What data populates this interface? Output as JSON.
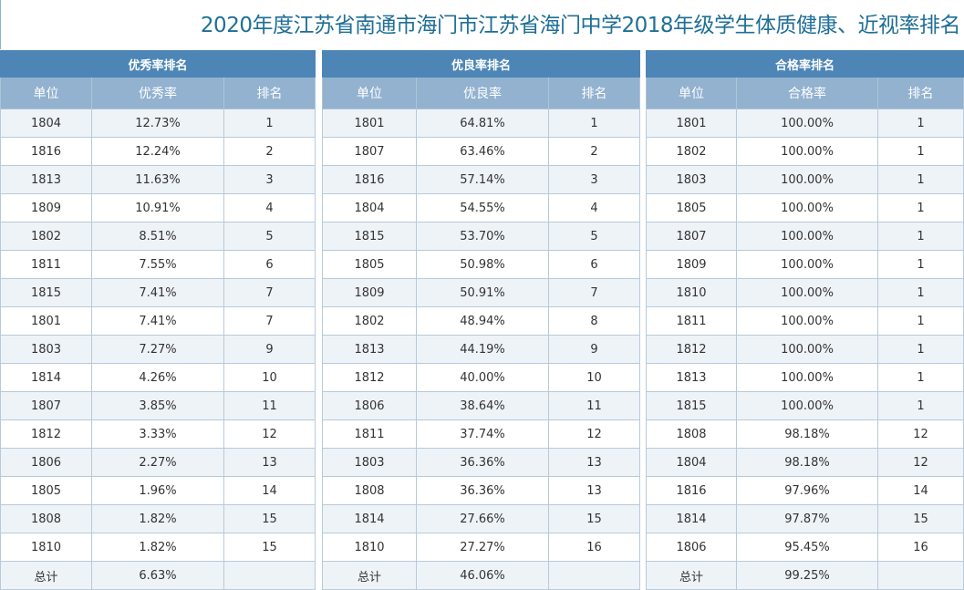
{
  "title": "2020年度江苏省南通市海门市江苏省海门中学2018年级学生体质健康、近视率排名",
  "colors": {
    "title": "#1f6f96",
    "panel_header": "#4d86b6",
    "column_header": "#92b2cf",
    "row_alt": "#eef3f8"
  },
  "panels": [
    {
      "title": "优秀率排名",
      "columns": [
        "单位",
        "优秀率",
        "排名"
      ],
      "rows": [
        [
          "1804",
          "12.73%",
          "1"
        ],
        [
          "1816",
          "12.24%",
          "2"
        ],
        [
          "1813",
          "11.63%",
          "3"
        ],
        [
          "1809",
          "10.91%",
          "4"
        ],
        [
          "1802",
          "8.51%",
          "5"
        ],
        [
          "1811",
          "7.55%",
          "6"
        ],
        [
          "1815",
          "7.41%",
          "7"
        ],
        [
          "1801",
          "7.41%",
          "7"
        ],
        [
          "1803",
          "7.27%",
          "9"
        ],
        [
          "1814",
          "4.26%",
          "10"
        ],
        [
          "1807",
          "3.85%",
          "11"
        ],
        [
          "1812",
          "3.33%",
          "12"
        ],
        [
          "1806",
          "2.27%",
          "13"
        ],
        [
          "1805",
          "1.96%",
          "14"
        ],
        [
          "1808",
          "1.82%",
          "15"
        ],
        [
          "1810",
          "1.82%",
          "15"
        ]
      ],
      "total": [
        "总计",
        "6.63%",
        ""
      ]
    },
    {
      "title": "优良率排名",
      "columns": [
        "单位",
        "优良率",
        "排名"
      ],
      "rows": [
        [
          "1801",
          "64.81%",
          "1"
        ],
        [
          "1807",
          "63.46%",
          "2"
        ],
        [
          "1816",
          "57.14%",
          "3"
        ],
        [
          "1804",
          "54.55%",
          "4"
        ],
        [
          "1815",
          "53.70%",
          "5"
        ],
        [
          "1805",
          "50.98%",
          "6"
        ],
        [
          "1809",
          "50.91%",
          "7"
        ],
        [
          "1802",
          "48.94%",
          "8"
        ],
        [
          "1813",
          "44.19%",
          "9"
        ],
        [
          "1812",
          "40.00%",
          "10"
        ],
        [
          "1806",
          "38.64%",
          "11"
        ],
        [
          "1811",
          "37.74%",
          "12"
        ],
        [
          "1803",
          "36.36%",
          "13"
        ],
        [
          "1808",
          "36.36%",
          "13"
        ],
        [
          "1814",
          "27.66%",
          "15"
        ],
        [
          "1810",
          "27.27%",
          "16"
        ]
      ],
      "total": [
        "总计",
        "46.06%",
        ""
      ]
    },
    {
      "title": "合格率排名",
      "columns": [
        "单位",
        "合格率",
        "排名"
      ],
      "rows": [
        [
          "1801",
          "100.00%",
          "1"
        ],
        [
          "1802",
          "100.00%",
          "1"
        ],
        [
          "1803",
          "100.00%",
          "1"
        ],
        [
          "1805",
          "100.00%",
          "1"
        ],
        [
          "1807",
          "100.00%",
          "1"
        ],
        [
          "1809",
          "100.00%",
          "1"
        ],
        [
          "1810",
          "100.00%",
          "1"
        ],
        [
          "1811",
          "100.00%",
          "1"
        ],
        [
          "1812",
          "100.00%",
          "1"
        ],
        [
          "1813",
          "100.00%",
          "1"
        ],
        [
          "1815",
          "100.00%",
          "1"
        ],
        [
          "1808",
          "98.18%",
          "12"
        ],
        [
          "1804",
          "98.18%",
          "12"
        ],
        [
          "1816",
          "97.96%",
          "14"
        ],
        [
          "1814",
          "97.87%",
          "15"
        ],
        [
          "1806",
          "95.45%",
          "16"
        ]
      ],
      "total": [
        "总计",
        "99.25%",
        ""
      ]
    }
  ]
}
